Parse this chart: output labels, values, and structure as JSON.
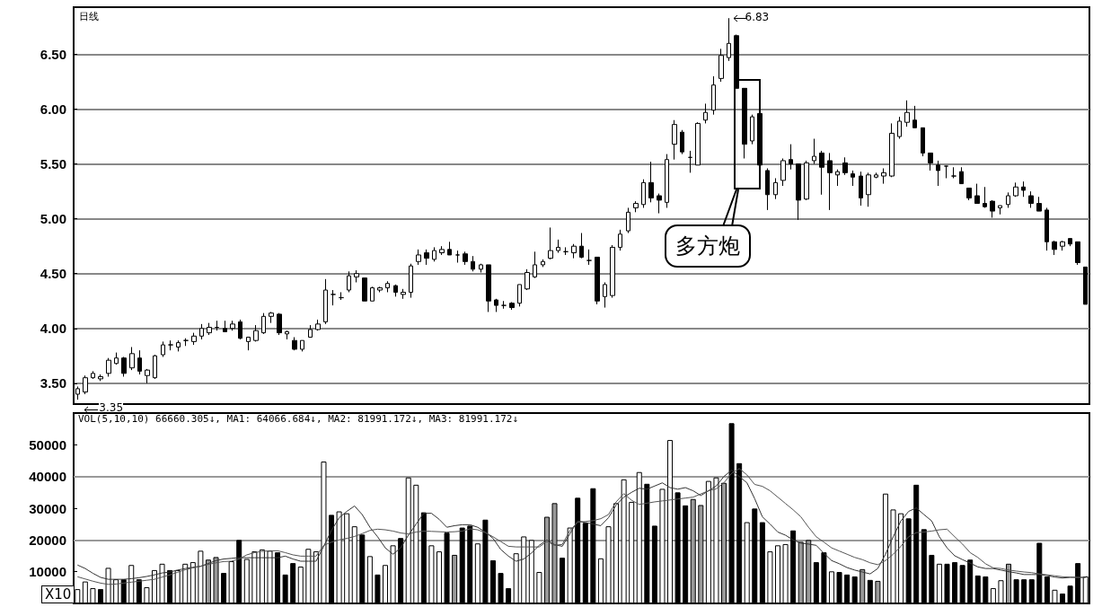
{
  "chart_data": [
    {
      "type": "candlestick",
      "title": "日线",
      "color": "#000000",
      "grid": "y",
      "tick_labels": "y",
      "categories": [
        null,
        null,
        null,
        null,
        null,
        null,
        null,
        null,
        null,
        null,
        null,
        null,
        null,
        null,
        null,
        null,
        null,
        null,
        null,
        null,
        null,
        null,
        null,
        null,
        null,
        null,
        null,
        null,
        null,
        null,
        null,
        null,
        null,
        null,
        null,
        null,
        null,
        null,
        null,
        null,
        null,
        null,
        null,
        null,
        null,
        null,
        null,
        null,
        null,
        null,
        null,
        null,
        null,
        null,
        null,
        null,
        null,
        null,
        null,
        null,
        null,
        null,
        null,
        null,
        null,
        null,
        null,
        null,
        null,
        null,
        null,
        null,
        null,
        null,
        null,
        null,
        null,
        null,
        null,
        null,
        null,
        null,
        null,
        null,
        null,
        null,
        null,
        null,
        null,
        null,
        null,
        null,
        null,
        null,
        null,
        null,
        null,
        null,
        null,
        null,
        null,
        null,
        null,
        null,
        null,
        null,
        null,
        null,
        null,
        null,
        null,
        null,
        null,
        null,
        null,
        null,
        null,
        null,
        null,
        null,
        null,
        null,
        null,
        null,
        null,
        null,
        null,
        null,
        null,
        null,
        null
      ],
      "ohlc": [
        [
          3.4,
          3.47,
          3.35,
          3.45
        ],
        [
          3.42,
          3.57,
          3.4,
          3.55
        ],
        [
          3.55,
          3.61,
          3.54,
          3.59
        ],
        [
          3.54,
          3.58,
          3.52,
          3.56
        ],
        [
          3.59,
          3.73,
          3.56,
          3.71
        ],
        [
          3.68,
          3.78,
          3.67,
          3.73
        ],
        [
          3.73,
          3.74,
          3.56,
          3.59
        ],
        [
          3.64,
          3.83,
          3.62,
          3.77
        ],
        [
          3.73,
          3.8,
          3.58,
          3.61
        ],
        [
          3.57,
          3.63,
          3.5,
          3.62
        ],
        [
          3.55,
          3.76,
          3.54,
          3.75
        ],
        [
          3.76,
          3.88,
          3.74,
          3.85
        ],
        [
          3.85,
          3.89,
          3.8,
          3.85
        ],
        [
          3.83,
          3.89,
          3.79,
          3.87
        ],
        [
          3.89,
          3.91,
          3.84,
          3.89
        ],
        [
          3.88,
          3.96,
          3.85,
          3.93
        ],
        [
          3.93,
          4.04,
          3.9,
          4.0
        ],
        [
          3.96,
          4.05,
          3.94,
          4.01
        ],
        [
          4.01,
          4.07,
          3.98,
          4.01
        ],
        [
          4.0,
          4.07,
          3.97,
          3.97
        ],
        [
          4.0,
          4.07,
          3.98,
          4.04
        ],
        [
          4.06,
          4.08,
          3.9,
          3.91
        ],
        [
          3.88,
          3.92,
          3.8,
          3.92
        ],
        [
          3.89,
          4.03,
          3.88,
          3.98
        ],
        [
          3.96,
          4.14,
          3.95,
          4.11
        ],
        [
          4.11,
          4.15,
          4.05,
          4.14
        ],
        [
          4.13,
          4.14,
          3.94,
          3.96
        ],
        [
          3.95,
          3.98,
          3.9,
          3.97
        ],
        [
          3.89,
          3.92,
          3.8,
          3.81
        ],
        [
          3.81,
          3.89,
          3.79,
          3.89
        ],
        [
          3.92,
          4.03,
          3.92,
          3.99
        ],
        [
          3.99,
          4.08,
          3.98,
          4.04
        ],
        [
          4.06,
          4.45,
          4.04,
          4.35
        ],
        [
          4.31,
          4.35,
          4.21,
          4.31
        ],
        [
          4.28,
          4.33,
          4.26,
          4.28
        ],
        [
          4.35,
          4.52,
          4.33,
          4.48
        ],
        [
          4.47,
          4.53,
          4.42,
          4.5
        ],
        [
          4.46,
          4.46,
          4.25,
          4.25
        ],
        [
          4.25,
          4.38,
          4.25,
          4.37
        ],
        [
          4.35,
          4.38,
          4.33,
          4.37
        ],
        [
          4.37,
          4.43,
          4.33,
          4.41
        ],
        [
          4.39,
          4.4,
          4.29,
          4.33
        ],
        [
          4.31,
          4.36,
          4.27,
          4.33
        ],
        [
          4.33,
          4.59,
          4.28,
          4.57
        ],
        [
          4.61,
          4.72,
          4.58,
          4.67
        ],
        [
          4.69,
          4.72,
          4.58,
          4.64
        ],
        [
          4.63,
          4.74,
          4.61,
          4.71
        ],
        [
          4.69,
          4.75,
          4.67,
          4.72
        ],
        [
          4.72,
          4.79,
          4.67,
          4.67
        ],
        [
          4.67,
          4.71,
          4.6,
          4.67
        ],
        [
          4.68,
          4.7,
          4.58,
          4.61
        ],
        [
          4.61,
          4.66,
          4.52,
          4.54
        ],
        [
          4.54,
          4.59,
          4.51,
          4.58
        ],
        [
          4.58,
          4.58,
          4.15,
          4.25
        ],
        [
          4.26,
          4.27,
          4.15,
          4.21
        ],
        [
          4.21,
          4.25,
          4.18,
          4.21
        ],
        [
          4.23,
          4.24,
          4.17,
          4.19
        ],
        [
          4.23,
          4.4,
          4.2,
          4.4
        ],
        [
          4.36,
          4.54,
          4.35,
          4.51
        ],
        [
          4.47,
          4.7,
          4.46,
          4.58
        ],
        [
          4.58,
          4.63,
          4.56,
          4.61
        ],
        [
          4.64,
          4.92,
          4.63,
          4.71
        ],
        [
          4.71,
          4.81,
          4.69,
          4.74
        ],
        [
          4.7,
          4.74,
          4.67,
          4.7
        ],
        [
          4.69,
          4.77,
          4.64,
          4.75
        ],
        [
          4.75,
          4.87,
          4.64,
          4.65
        ],
        [
          4.62,
          4.72,
          4.58,
          4.62
        ],
        [
          4.65,
          4.65,
          4.22,
          4.25
        ],
        [
          4.29,
          4.42,
          4.19,
          4.4
        ],
        [
          4.3,
          4.76,
          4.28,
          4.74
        ],
        [
          4.74,
          4.9,
          4.71,
          4.86
        ],
        [
          4.89,
          5.1,
          4.87,
          5.06
        ],
        [
          5.1,
          5.16,
          5.06,
          5.14
        ],
        [
          5.13,
          5.36,
          5.1,
          5.33
        ],
        [
          5.33,
          5.52,
          5.15,
          5.19
        ],
        [
          5.21,
          5.23,
          5.05,
          5.17
        ],
        [
          5.15,
          5.59,
          5.1,
          5.54
        ],
        [
          5.68,
          5.9,
          5.54,
          5.86
        ],
        [
          5.79,
          5.81,
          5.59,
          5.61
        ],
        [
          5.56,
          5.62,
          5.42,
          5.56
        ],
        [
          5.49,
          5.88,
          5.49,
          5.87
        ],
        [
          5.9,
          6.05,
          5.87,
          5.97
        ],
        [
          5.99,
          6.3,
          5.95,
          6.22
        ],
        [
          6.28,
          6.55,
          6.25,
          6.49
        ],
        [
          6.47,
          6.83,
          6.44,
          6.6
        ],
        [
          6.67,
          6.68,
          6.19,
          6.19
        ],
        [
          6.19,
          6.19,
          5.55,
          5.68
        ],
        [
          5.71,
          5.95,
          5.68,
          5.93
        ],
        [
          5.96,
          5.97,
          5.49,
          5.49
        ],
        [
          5.44,
          5.46,
          5.08,
          5.22
        ],
        [
          5.22,
          5.37,
          5.18,
          5.33
        ],
        [
          5.35,
          5.55,
          5.3,
          5.53
        ],
        [
          5.54,
          5.68,
          5.45,
          5.5
        ],
        [
          5.5,
          5.5,
          4.99,
          5.17
        ],
        [
          5.18,
          5.53,
          5.17,
          5.51
        ],
        [
          5.53,
          5.73,
          5.5,
          5.57
        ],
        [
          5.6,
          5.62,
          5.22,
          5.47
        ],
        [
          5.53,
          5.6,
          5.08,
          5.42
        ],
        [
          5.4,
          5.45,
          5.3,
          5.43
        ],
        [
          5.51,
          5.56,
          5.4,
          5.42
        ],
        [
          5.41,
          5.44,
          5.3,
          5.38
        ],
        [
          5.39,
          5.43,
          5.12,
          5.19
        ],
        [
          5.22,
          5.42,
          5.11,
          5.4
        ],
        [
          5.38,
          5.42,
          5.37,
          5.4
        ],
        [
          5.39,
          5.46,
          5.32,
          5.42
        ],
        [
          5.39,
          5.87,
          5.38,
          5.78
        ],
        [
          5.75,
          5.93,
          5.73,
          5.89
        ],
        [
          5.88,
          6.08,
          5.84,
          5.97
        ],
        [
          5.9,
          6.03,
          5.83,
          5.83
        ],
        [
          5.83,
          5.83,
          5.57,
          5.6
        ],
        [
          5.6,
          5.6,
          5.44,
          5.51
        ],
        [
          5.49,
          5.53,
          5.3,
          5.44
        ],
        [
          5.48,
          5.48,
          5.37,
          5.48
        ],
        [
          5.39,
          5.47,
          5.37,
          5.39
        ],
        [
          5.43,
          5.47,
          5.32,
          5.32
        ],
        [
          5.28,
          5.28,
          5.17,
          5.19
        ],
        [
          5.21,
          5.32,
          5.14,
          5.14
        ],
        [
          5.14,
          5.29,
          5.1,
          5.11
        ],
        [
          5.16,
          5.17,
          5.01,
          5.07
        ],
        [
          5.1,
          5.12,
          5.04,
          5.12
        ],
        [
          5.13,
          5.24,
          5.1,
          5.21
        ],
        [
          5.21,
          5.33,
          5.2,
          5.29
        ],
        [
          5.29,
          5.34,
          5.2,
          5.26
        ],
        [
          5.21,
          5.25,
          5.1,
          5.14
        ],
        [
          5.14,
          5.2,
          5.07,
          5.07
        ],
        [
          5.08,
          5.1,
          4.71,
          4.79
        ],
        [
          4.79,
          4.8,
          4.67,
          4.72
        ],
        [
          4.75,
          4.8,
          4.71,
          4.79
        ],
        [
          4.82,
          4.82,
          4.75,
          4.77
        ],
        [
          4.79,
          4.79,
          4.58,
          4.6
        ],
        [
          4.56,
          4.56,
          4.22,
          4.22
        ]
      ],
      "ylim": [
        3.31,
        6.93
      ],
      "yticks": [
        {
          "value": 3.5,
          "label": "3.50"
        },
        {
          "value": 4,
          "label": "4.00"
        },
        {
          "value": 4.5,
          "label": "4.50"
        },
        {
          "value": 5,
          "label": "5.00"
        },
        {
          "value": 5.5,
          "label": "5.50"
        },
        {
          "value": 6,
          "label": "6.00"
        },
        {
          "value": 6.5,
          "label": "6.50"
        }
      ],
      "annotations": [
        "6.83",
        "3.35",
        "多方炮"
      ]
    },
    {
      "type": "bar",
      "title": "VOL(5,10,10) 66660.305↓, MA1: 64066.684↓, MA2: 81991.172↓, MA3: 81991.172↓",
      "tick_labels": "y",
      "categories": [
        null,
        null,
        null,
        null,
        null,
        null,
        null,
        null,
        null,
        null,
        null,
        null,
        null,
        null,
        null,
        null,
        null,
        null,
        null,
        null,
        null,
        null,
        null,
        null,
        null,
        null,
        null,
        null,
        null,
        null,
        null,
        null,
        null,
        null,
        null,
        null,
        null,
        null,
        null,
        null,
        null,
        null,
        null,
        null,
        null,
        null,
        null,
        null,
        null,
        null,
        null,
        null,
        null,
        null,
        null,
        null,
        null,
        null,
        null,
        null,
        null,
        null,
        null,
        null,
        null,
        null,
        null,
        null,
        null,
        null,
        null,
        null,
        null,
        null,
        null,
        null,
        null,
        null,
        null,
        null,
        null,
        null,
        null,
        null,
        null,
        null,
        null,
        null,
        null,
        null,
        null,
        null,
        null,
        null,
        null,
        null,
        null,
        null,
        null,
        null,
        null,
        null,
        null,
        null,
        null,
        null,
        null,
        null,
        null,
        null,
        null,
        null,
        null,
        null,
        null,
        null,
        null,
        null,
        null,
        null,
        null,
        null,
        null,
        null,
        null,
        null,
        null,
        null,
        null,
        null,
        null,
        null
      ],
      "series": [
        {
          "type": "bar",
          "values": [
            4500,
            6900,
            4800,
            4500,
            11200,
            7600,
            7600,
            12100,
            7600,
            5100,
            10500,
            12500,
            10500,
            10500,
            12500,
            13000,
            16600,
            13800,
            14600,
            9600,
            13300,
            20000,
            14000,
            16400,
            17000,
            16600,
            16100,
            9100,
            12700,
            11600,
            17200,
            16400,
            44700,
            27900,
            29000,
            28400,
            24300,
            21700,
            14900,
            9100,
            12100,
            18300,
            20600,
            39700,
            37400,
            28700,
            18300,
            16400,
            22300,
            15300,
            23900,
            24500,
            18900,
            26400,
            13600,
            9600,
            4800,
            15800,
            21100,
            20000,
            9900,
            27300,
            31600,
            14400,
            23900,
            33300,
            25400,
            36300,
            14200,
            24300,
            31600,
            39100,
            32000,
            41400,
            37700,
            24500,
            36100,
            51500,
            35000,
            30900,
            32900,
            31000,
            38600,
            39700,
            38000,
            56800,
            44200,
            25600,
            29900,
            25600,
            16400,
            18300,
            18700,
            23000,
            19400,
            20000,
            13000,
            16100,
            10100,
            9900,
            9100,
            8500,
            10800,
            7400,
            7100,
            34600,
            29600,
            28400,
            26800,
            37400,
            23400,
            15300,
            12500,
            12500,
            13000,
            12100,
            13800,
            8800,
            8500,
            4800,
            7300,
            12500,
            7600,
            7600,
            7600,
            19100,
            8500,
            4300,
            3100,
            5600,
            12700,
            8500
          ],
          "colors": [
            "#ffffff",
            "#ffffff",
            "#ffffff",
            "#000000",
            "#ffffff",
            "#ffffff",
            "#000000",
            "#ffffff",
            "#000000",
            "#ffffff",
            "#ffffff",
            "#ffffff",
            "#000000",
            "#ffffff",
            "#ffffff",
            "#ffffff",
            "#ffffff",
            "#999999",
            "#999999",
            "#000000",
            "#ffffff",
            "#000000",
            "#ffffff",
            "#ffffff",
            "#ffffff",
            "#ffffff",
            "#000000",
            "#000000",
            "#000000",
            "#ffffff",
            "#ffffff",
            "#ffffff",
            "#ffffff",
            "#000000",
            "#ffffff",
            "#ffffff",
            "#ffffff",
            "#000000",
            "#ffffff",
            "#000000",
            "#ffffff",
            "#ffffff",
            "#000000",
            "#ffffff",
            "#ffffff",
            "#000000",
            "#ffffff",
            "#ffffff",
            "#000000",
            "#999999",
            "#000000",
            "#000000",
            "#ffffff",
            "#000000",
            "#000000",
            "#000000",
            "#000000",
            "#ffffff",
            "#ffffff",
            "#ffffff",
            "#ffffff",
            "#999999",
            "#999999",
            "#000000",
            "#ffffff",
            "#000000",
            "#000000",
            "#000000",
            "#ffffff",
            "#ffffff",
            "#ffffff",
            "#ffffff",
            "#ffffff",
            "#ffffff",
            "#000000",
            "#000000",
            "#ffffff",
            "#ffffff",
            "#000000",
            "#000000",
            "#999999",
            "#999999",
            "#ffffff",
            "#ffffff",
            "#999999",
            "#000000",
            "#000000",
            "#ffffff",
            "#000000",
            "#000000",
            "#ffffff",
            "#ffffff",
            "#ffffff",
            "#000000",
            "#999999",
            "#999999",
            "#000000",
            "#000000",
            "#ffffff",
            "#000000",
            "#000000",
            "#000000",
            "#999999",
            "#000000",
            "#999999",
            "#ffffff",
            "#ffffff",
            "#ffffff",
            "#000000",
            "#000000",
            "#000000",
            "#000000",
            "#ffffff",
            "#000000",
            "#000000",
            "#000000",
            "#000000",
            "#000000",
            "#000000",
            "#ffffff",
            "#ffffff",
            "#999999",
            "#000000",
            "#000000",
            "#000000",
            "#000000",
            "#000000",
            "#ffffff",
            "#000000",
            "#000000",
            "#000000",
            "#ffffff"
          ]
        },
        {
          "type": "line",
          "color": "#333333",
          "values": [
            12100,
            11000,
            9500,
            8200,
            7600,
            7600,
            7600,
            7800,
            8100,
            8500,
            9000,
            9600,
            9900,
            10500,
            11000,
            11400,
            11700,
            12600,
            13500,
            14000,
            14200,
            14400,
            14400,
            14400,
            14400,
            14400,
            14400,
            14900,
            14000,
            13300,
            13300,
            13300,
            18000,
            23000,
            27000,
            29000,
            30700,
            28000,
            24000,
            21000,
            17500,
            15500,
            17500,
            21500,
            25000,
            28400,
            28400,
            26500,
            24000,
            24500,
            24800,
            24800,
            24000,
            22500,
            20500,
            17000,
            14900,
            13300,
            14000,
            15900,
            18300,
            20000,
            18500,
            18000,
            22000,
            26000,
            25500,
            25000,
            24500,
            27000,
            31000,
            33500,
            35000,
            36300,
            36000,
            37000,
            38000,
            36500,
            36000,
            36500,
            35500,
            34000,
            35500,
            37000,
            40000,
            42000,
            40000,
            38000,
            33000,
            27300,
            25000,
            22500,
            21500,
            20000,
            19000,
            18700,
            18300,
            15800,
            13500,
            12500,
            11300,
            10500,
            9900,
            9300,
            11000,
            15500,
            21000,
            26000,
            29000,
            30100,
            28000,
            26000,
            21000,
            17500,
            15000,
            13800,
            12700,
            11500,
            11000,
            11000,
            10500,
            10000,
            9600,
            9100,
            9100,
            9100,
            8800,
            8300,
            8000,
            8200,
            8200,
            8200
          ]
        },
        {
          "type": "line",
          "color": "#555555",
          "values": [
            8400,
            7700,
            7000,
            6400,
            6000,
            6100,
            6400,
            6700,
            7000,
            7300,
            7600,
            8300,
            9000,
            9800,
            10600,
            11200,
            11700,
            12300,
            12800,
            13200,
            13300,
            14000,
            15300,
            16000,
            16400,
            16600,
            16600,
            16000,
            15300,
            14900,
            14900,
            14900,
            18300,
            19300,
            20000,
            20500,
            21100,
            22000,
            23000,
            23400,
            23200,
            22800,
            22200,
            21900,
            22500,
            22800,
            22700,
            22600,
            22500,
            22600,
            22800,
            23500,
            23200,
            22300,
            21000,
            19500,
            18000,
            17800,
            17800,
            17800,
            17800,
            19500,
            18300,
            18600,
            23000,
            25600,
            25800,
            26100,
            26700,
            28000,
            32000,
            34600,
            32500,
            31200,
            31600,
            32000,
            32300,
            32600,
            32900,
            33200,
            33500,
            34500,
            35500,
            36100,
            38000,
            41000,
            42500,
            40500,
            37500,
            36900,
            35500,
            33500,
            31500,
            29500,
            27300,
            24000,
            21000,
            19300,
            17500,
            16500,
            15500,
            14500,
            13800,
            12800,
            12200,
            13500,
            15500,
            18000,
            21000,
            22300,
            22500,
            22800,
            23200,
            23400,
            21000,
            18700,
            16000,
            14500,
            12500,
            11200,
            11000,
            10500,
            10200,
            9900,
            9700,
            9300,
            9000,
            8700,
            8400,
            8300,
            8200,
            8200
          ]
        }
      ],
      "ylim": [
        0,
        60000
      ],
      "yticks": [
        10000,
        20000,
        30000,
        40000,
        50000
      ],
      "ref_lines": [
        {
          "axis": "y",
          "value": 20000,
          "color": "#999999"
        },
        {
          "axis": "y",
          "value": 40000,
          "color": "#999999"
        }
      ],
      "annotations": [
        "X10"
      ]
    }
  ]
}
